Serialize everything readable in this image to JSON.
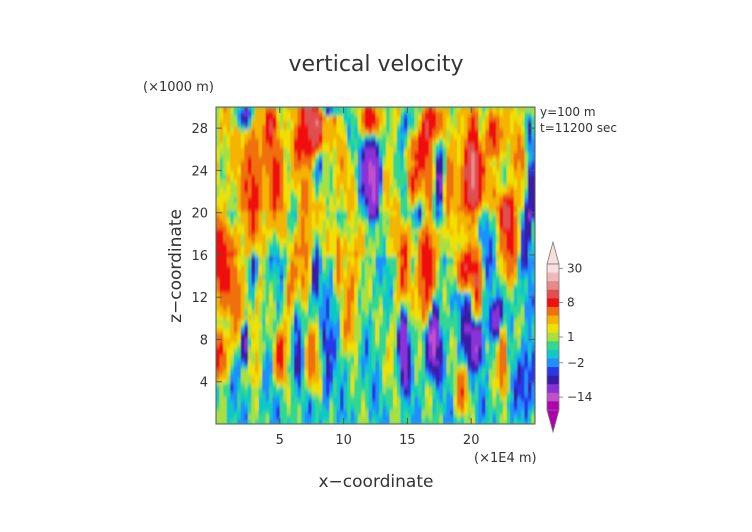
{
  "chart_data": {
    "type": "heatmap",
    "title": "vertical velocity",
    "xlabel": "x−coordinate",
    "ylabel": "z−coordinate",
    "x_unit": "(×1E4 m)",
    "y_unit": "(×1000 m)",
    "info": [
      "y=100  m",
      "t=11200 sec"
    ],
    "xlim": [
      0,
      25
    ],
    "ylim": [
      0,
      30
    ],
    "x_ticks": [
      5,
      10,
      15,
      20
    ],
    "y_ticks": [
      4,
      8,
      12,
      16,
      20,
      24,
      28
    ],
    "colorbar": {
      "labels": [
        {
          "text": "30",
          "value": 30
        },
        {
          "text": "8",
          "value": 8
        },
        {
          "text": "1",
          "value": 1
        },
        {
          "text": "−2",
          "value": -2
        },
        {
          "text": "−14",
          "value": -14
        }
      ],
      "levels": [
        {
          "v": -30,
          "color": "#b000b0"
        },
        {
          "v": -14,
          "color": "#c050c8"
        },
        {
          "v": -8,
          "color": "#8a30d8"
        },
        {
          "v": -5,
          "color": "#3a1aa8"
        },
        {
          "v": -3,
          "color": "#2838e8"
        },
        {
          "v": -2,
          "color": "#1e90ff"
        },
        {
          "v": -1,
          "color": "#10c8c8"
        },
        {
          "v": 0,
          "color": "#30d890"
        },
        {
          "v": 1,
          "color": "#a8e040"
        },
        {
          "v": 2,
          "color": "#f0e000"
        },
        {
          "v": 3,
          "color": "#f4b400"
        },
        {
          "v": 5,
          "color": "#f07010"
        },
        {
          "v": 8,
          "color": "#f01010"
        },
        {
          "v": 12,
          "color": "#e05050"
        },
        {
          "v": 18,
          "color": "#e88888"
        },
        {
          "v": 24,
          "color": "#f0b8b8"
        },
        {
          "v": 30,
          "color": "#f8dede"
        }
      ]
    },
    "field_description": "Turbulent vertical velocity field with vertically elongated updraft (orange/red) and downdraft (blue) plumes over a green/yellow background."
  }
}
